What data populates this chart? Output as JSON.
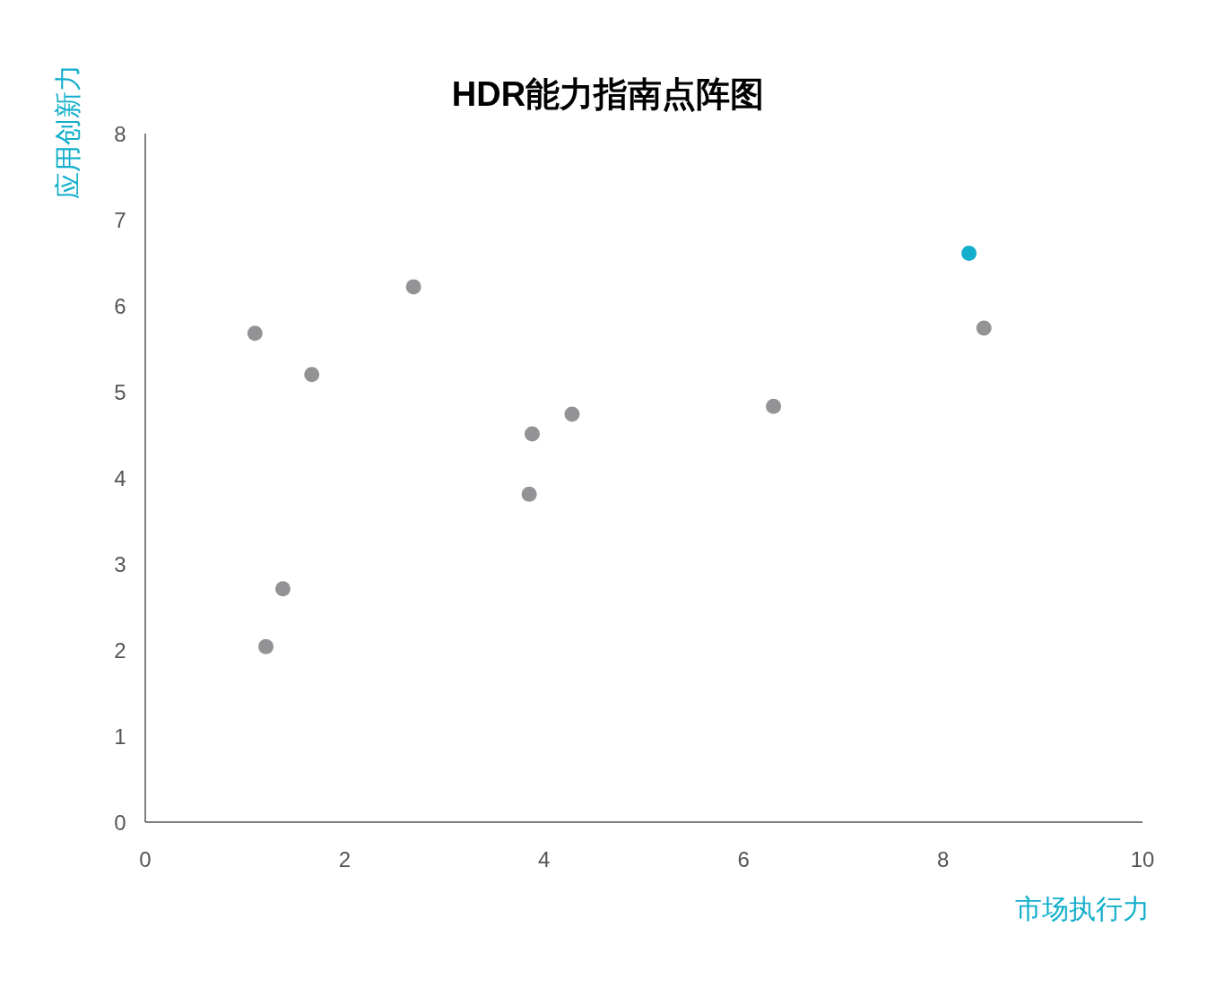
{
  "chart_data": {
    "type": "scatter",
    "title": "HDR能力指南点阵图",
    "xlabel": "市场执行力",
    "ylabel": "应用创新力",
    "x": [
      8.26,
      2.69,
      1.1,
      8.41,
      1.67,
      4.28,
      6.3,
      3.88,
      3.85,
      1.38,
      1.21
    ],
    "values": [
      6.61,
      6.22,
      5.68,
      5.74,
      5.2,
      4.74,
      4.83,
      4.51,
      3.81,
      2.71,
      2.04
    ],
    "colors": [
      "#12aecb",
      "#939396",
      "#939396",
      "#939396",
      "#939396",
      "#939396",
      "#939396",
      "#939396",
      "#939396",
      "#939396",
      "#939396"
    ],
    "marker": "circle",
    "xlim": [
      0,
      10
    ],
    "ylim": [
      0,
      8
    ],
    "xticks": [
      0,
      2,
      4,
      6,
      8,
      10
    ],
    "yticks": [
      0,
      1,
      2,
      3,
      4,
      5,
      6,
      7,
      8
    ]
  }
}
